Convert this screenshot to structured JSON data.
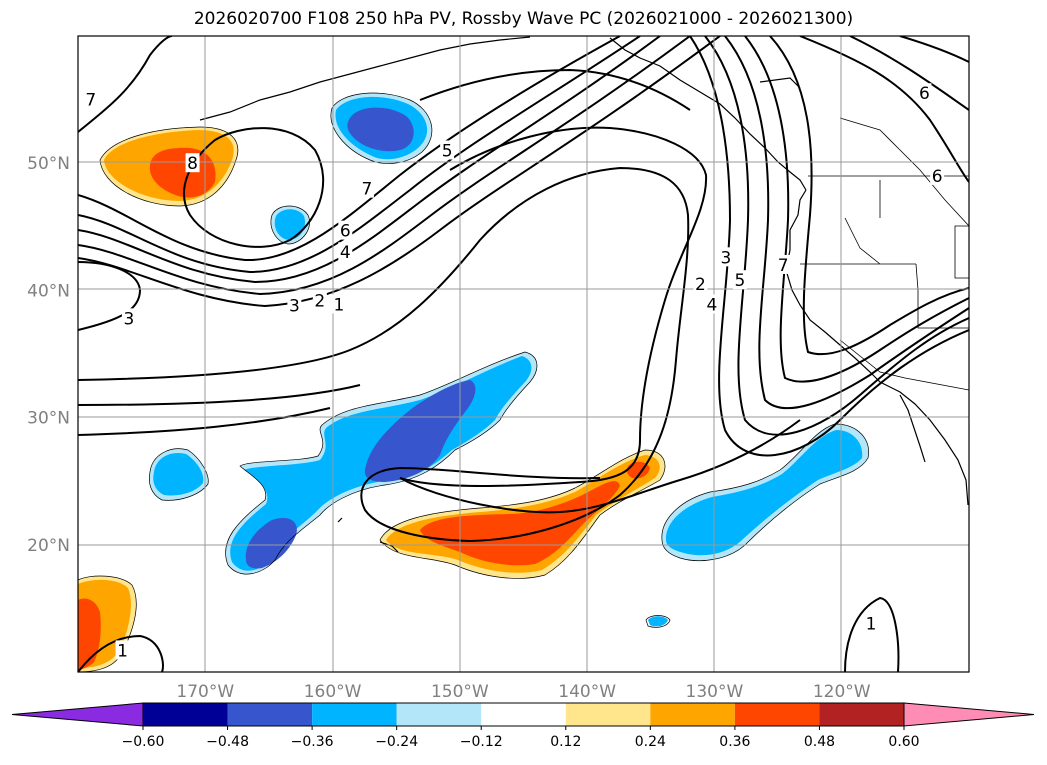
{
  "title": "2026020700 F108 250 hPa PV, Rossby Wave PC (2026021000 - 2026021300)",
  "chart_data": {
    "type": "heatmap",
    "title": "2026020700 F108 250 hPa PV, Rossby Wave PC (2026021000 - 2026021300)",
    "lon_range": [
      -180,
      -110
    ],
    "lat_range": [
      10,
      60
    ],
    "lat_ticks": [
      {
        "value": 20,
        "label": "20°N"
      },
      {
        "value": 30,
        "label": "30°N"
      },
      {
        "value": 40,
        "label": "40°N"
      },
      {
        "value": 50,
        "label": "50°N"
      }
    ],
    "lon_ticks": [
      {
        "value": -170,
        "label": "170°W"
      },
      {
        "value": -160,
        "label": "160°W"
      },
      {
        "value": -150,
        "label": "150°W"
      },
      {
        "value": -140,
        "label": "140°W"
      },
      {
        "value": -130,
        "label": "130°W"
      },
      {
        "value": -120,
        "label": "120°W"
      }
    ],
    "grid": true,
    "colorbar": {
      "boundaries": [
        -0.6,
        -0.48,
        -0.36,
        -0.24,
        -0.12,
        0.12,
        0.24,
        0.36,
        0.48,
        0.6
      ],
      "labels": [
        "−0.60",
        "−0.48",
        "−0.36",
        "−0.24",
        "−0.12",
        "0.12",
        "0.24",
        "0.36",
        "0.48",
        "0.60"
      ],
      "colors": [
        "#8a2be2",
        "#000096",
        "#3755cd",
        "#00b4ff",
        "#b4e6fa",
        "#ffffff",
        "#ffe68c",
        "#ffa500",
        "#ff4600",
        "#b22222",
        "#ff8cb4"
      ],
      "extend": "both"
    },
    "pv_contour_labels": [
      {
        "text": "7",
        "lon": -179,
        "lat": 55
      },
      {
        "text": "8",
        "lon": -171,
        "lat": 50
      },
      {
        "text": "5",
        "lon": -151,
        "lat": 51
      },
      {
        "text": "7",
        "lon": -157.3,
        "lat": 48
      },
      {
        "text": "6",
        "lon": -159,
        "lat": 44.7
      },
      {
        "text": "4",
        "lon": -159,
        "lat": 43
      },
      {
        "text": "3",
        "lon": -163,
        "lat": 38.8
      },
      {
        "text": "2",
        "lon": -161,
        "lat": 39.2
      },
      {
        "text": "1",
        "lon": -159.5,
        "lat": 38.9
      },
      {
        "text": "3",
        "lon": -176,
        "lat": 37.8
      },
      {
        "text": "2",
        "lon": -131.1,
        "lat": 40.5
      },
      {
        "text": "3",
        "lon": -129.1,
        "lat": 42.6
      },
      {
        "text": "4",
        "lon": -130.2,
        "lat": 38.9
      },
      {
        "text": "5",
        "lon": -128,
        "lat": 40.8
      },
      {
        "text": "7",
        "lon": -124.6,
        "lat": 42
      },
      {
        "text": "6",
        "lon": -113.5,
        "lat": 55.5
      },
      {
        "text": "6",
        "lon": -112.5,
        "lat": 49
      },
      {
        "text": "1",
        "lon": -176.5,
        "lat": 11.7
      },
      {
        "text": "1",
        "lon": -117.7,
        "lat": 13.8
      }
    ]
  }
}
